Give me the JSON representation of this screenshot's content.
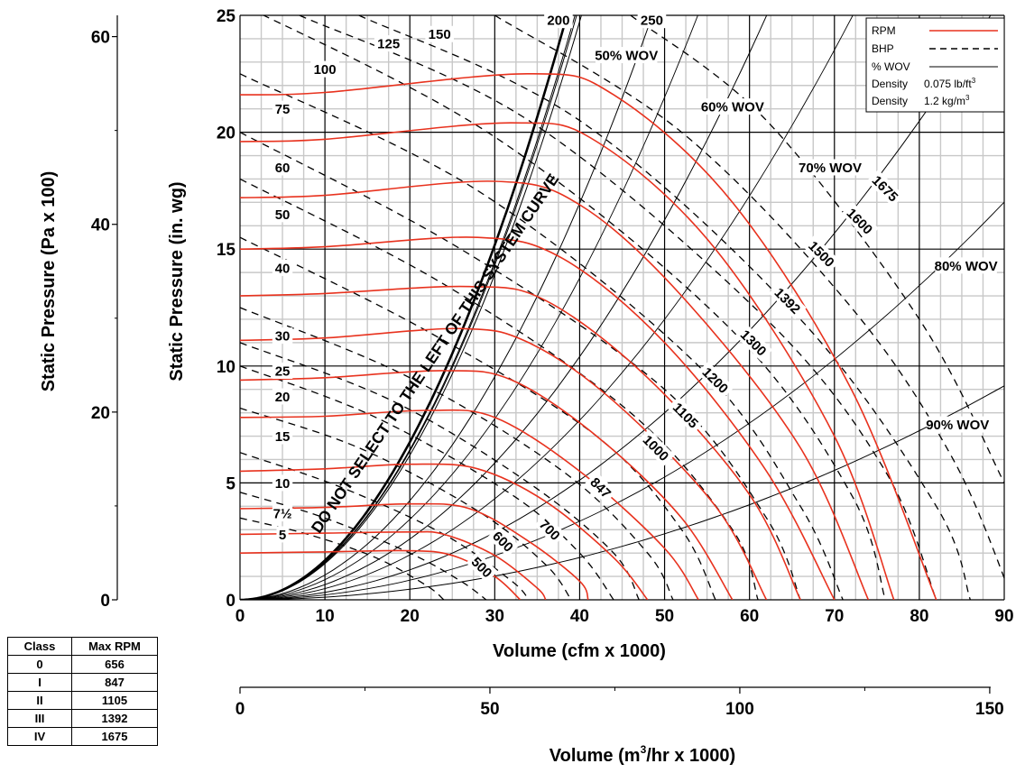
{
  "chart_data": {
    "type": "line",
    "xlabel": "Volume (cfm x 1000)",
    "ylabel": "Static Pressure (in. wg)",
    "ylabel_secondary": "Static Pressure (Pa x 100)",
    "xlabel_secondary_prefix": "Volume (m",
    "xlabel_secondary_sup": "3",
    "xlabel_secondary_suffix": "/hr x 1000)",
    "xlim": [
      0,
      90
    ],
    "ylim": [
      0,
      25
    ],
    "x_ticks": [
      "0",
      "10",
      "20",
      "30",
      "40",
      "50",
      "60",
      "70",
      "80",
      "90"
    ],
    "y_ticks": [
      "0",
      "5",
      "10",
      "15",
      "20",
      "25"
    ],
    "y2_ticks": [
      "0",
      "20",
      "40",
      "60"
    ],
    "y2_tick_values_inwg": [
      0,
      8.03,
      16.06,
      24.09
    ],
    "x2_ticks": [
      "0",
      "50",
      "100",
      "150"
    ],
    "x2_tick_values_cfm": [
      0,
      29.43,
      58.86,
      88.29
    ],
    "grid": true,
    "legend_position": "top-right",
    "legend": {
      "rpm": "RPM",
      "bhp": "BHP",
      "wov": "% WOV",
      "density1_label": "Density",
      "density1_value": "0.075 lb/ft",
      "density1_sup": "3",
      "density2_label": "Density",
      "density2_value": "1.2 kg/m",
      "density2_sup": "3"
    },
    "colors": {
      "rpm": "#e8321e",
      "bhp": "#000000",
      "wov": "#000000",
      "grid": "#c8c8c8"
    },
    "system_curve_label": "DO NOT SELECT TO THE LEFT OF THIS SYSTEM CURVE",
    "rpm_series": [
      {
        "name": "500",
        "points": [
          [
            0,
            2.0
          ],
          [
            10,
            2.05
          ],
          [
            20,
            2.1
          ],
          [
            25,
            1.9
          ],
          [
            30,
            1.0
          ],
          [
            33,
            0
          ]
        ],
        "label_at": [
          28.5,
          1.4
        ]
      },
      {
        "name": "600",
        "points": [
          [
            0,
            2.8
          ],
          [
            10,
            2.85
          ],
          [
            20,
            2.9
          ],
          [
            24,
            2.8
          ],
          [
            30,
            1.9
          ],
          [
            35,
            0.5
          ],
          [
            36,
            0
          ]
        ],
        "label_at": [
          31,
          2.5
        ]
      },
      {
        "name": "700",
        "points": [
          [
            0,
            3.9
          ],
          [
            10,
            3.95
          ],
          [
            20,
            4.1
          ],
          [
            27,
            3.9
          ],
          [
            34,
            2.5
          ],
          [
            40,
            0.8
          ],
          [
            41,
            0
          ]
        ],
        "label_at": [
          36.5,
          3.0
        ]
      },
      {
        "name": "847",
        "points": [
          [
            0,
            5.5
          ],
          [
            10,
            5.6
          ],
          [
            20,
            5.8
          ],
          [
            28,
            5.6
          ],
          [
            36,
            4.2
          ],
          [
            44,
            1.8
          ],
          [
            48,
            0
          ]
        ],
        "label_at": [
          42.5,
          4.8
        ]
      },
      {
        "name": "1000",
        "points": [
          [
            0,
            7.8
          ],
          [
            10,
            7.85
          ],
          [
            22,
            8.1
          ],
          [
            30,
            7.8
          ],
          [
            40,
            5.5
          ],
          [
            50,
            2.2
          ],
          [
            54,
            0
          ]
        ],
        "label_at": [
          49,
          6.5
        ]
      },
      {
        "name": "1105",
        "points": [
          [
            0,
            9.4
          ],
          [
            10,
            9.5
          ],
          [
            24,
            9.8
          ],
          [
            32,
            9.4
          ],
          [
            42,
            7.0
          ],
          [
            52,
            3.5
          ],
          [
            58,
            0
          ]
        ],
        "label_at": [
          52.5,
          7.9
        ]
      },
      {
        "name": "1200",
        "points": [
          [
            0,
            11.1
          ],
          [
            10,
            11.2
          ],
          [
            26,
            11.6
          ],
          [
            34,
            11.0
          ],
          [
            44,
            8.5
          ],
          [
            56,
            4.0
          ],
          [
            62,
            0
          ]
        ],
        "label_at": [
          56,
          9.4
        ]
      },
      {
        "name": "1300",
        "points": [
          [
            0,
            13.0
          ],
          [
            10,
            13.1
          ],
          [
            27,
            13.4
          ],
          [
            36,
            12.8
          ],
          [
            48,
            9.5
          ],
          [
            60,
            4.5
          ],
          [
            66,
            0
          ]
        ],
        "label_at": [
          60.5,
          11.0
        ]
      },
      {
        "name": "1392",
        "points": [
          [
            0,
            15.0
          ],
          [
            10,
            15.1
          ],
          [
            28,
            15.5
          ],
          [
            38,
            14.6
          ],
          [
            50,
            11.0
          ],
          [
            62,
            5.5
          ],
          [
            70,
            0
          ]
        ],
        "label_at": [
          64.5,
          12.8
        ]
      },
      {
        "name": "1500",
        "points": [
          [
            0,
            17.2
          ],
          [
            10,
            17.3
          ],
          [
            30,
            17.9
          ],
          [
            40,
            16.9
          ],
          [
            52,
            13.0
          ],
          [
            66,
            6.5
          ],
          [
            74,
            0
          ]
        ],
        "label_at": [
          68.5,
          14.8
        ]
      },
      {
        "name": "1600",
        "points": [
          [
            0,
            19.6
          ],
          [
            10,
            19.7
          ],
          [
            32,
            20.4
          ],
          [
            42,
            19.6
          ],
          [
            56,
            15.0
          ],
          [
            70,
            7.0
          ],
          [
            77,
            0
          ]
        ],
        "label_at": [
          73,
          16.2
        ]
      },
      {
        "name": "1675",
        "points": [
          [
            0,
            21.6
          ],
          [
            10,
            21.7
          ],
          [
            34,
            22.5
          ],
          [
            44,
            21.6
          ],
          [
            58,
            17.0
          ],
          [
            72,
            9.0
          ],
          [
            82,
            0
          ]
        ],
        "label_at": [
          76,
          17.6
        ]
      }
    ],
    "bhp_series": [
      {
        "name": "5",
        "label_at": [
          5.0,
          2.8
        ],
        "points": [
          [
            0,
            3.5
          ],
          [
            8,
            2.8
          ],
          [
            16,
            1.8
          ],
          [
            22,
            0.6
          ],
          [
            24,
            0
          ]
        ]
      },
      {
        "name": "7½",
        "label_at": [
          5.0,
          3.7
        ],
        "points": [
          [
            0,
            4.6
          ],
          [
            10,
            3.5
          ],
          [
            20,
            2.0
          ],
          [
            26,
            0.8
          ],
          [
            29,
            0
          ]
        ]
      },
      {
        "name": "10",
        "label_at": [
          5.0,
          5.0
        ],
        "points": [
          [
            0,
            6.3
          ],
          [
            12,
            4.8
          ],
          [
            24,
            2.8
          ],
          [
            32,
            0.8
          ],
          [
            34,
            0
          ]
        ]
      },
      {
        "name": "15",
        "label_at": [
          5.0,
          7.0
        ],
        "points": [
          [
            0,
            8.2
          ],
          [
            14,
            6.5
          ],
          [
            28,
            3.8
          ],
          [
            36,
            1.5
          ],
          [
            39,
            0
          ]
        ]
      },
      {
        "name": "20",
        "label_at": [
          5.0,
          8.7
        ],
        "points": [
          [
            0,
            10.0
          ],
          [
            16,
            7.8
          ],
          [
            32,
            4.5
          ],
          [
            40,
            2.0
          ],
          [
            44,
            0
          ]
        ]
      },
      {
        "name": "25",
        "label_at": [
          5.0,
          9.8
        ],
        "points": [
          [
            0,
            11.0
          ],
          [
            18,
            8.5
          ],
          [
            34,
            5.0
          ],
          [
            44,
            2.0
          ],
          [
            47,
            0
          ]
        ]
      },
      {
        "name": "30",
        "label_at": [
          5.0,
          11.3
        ],
        "points": [
          [
            0,
            12.5
          ],
          [
            20,
            9.5
          ],
          [
            38,
            5.5
          ],
          [
            48,
            2.0
          ],
          [
            51,
            0
          ]
        ]
      },
      {
        "name": "40",
        "label_at": [
          5.0,
          14.2
        ],
        "points": [
          [
            0,
            15.5
          ],
          [
            22,
            11.5
          ],
          [
            42,
            7.0
          ],
          [
            52,
            3.0
          ],
          [
            56,
            0
          ]
        ]
      },
      {
        "name": "50",
        "label_at": [
          5.0,
          16.5
        ],
        "points": [
          [
            0,
            18.0
          ],
          [
            24,
            13.5
          ],
          [
            46,
            8.0
          ],
          [
            58,
            3.0
          ],
          [
            61,
            0
          ]
        ]
      },
      {
        "name": "60",
        "label_at": [
          5.0,
          18.5
        ],
        "points": [
          [
            0,
            20.0
          ],
          [
            26,
            15.0
          ],
          [
            50,
            9.0
          ],
          [
            62,
            3.5
          ],
          [
            66,
            0
          ]
        ]
      },
      {
        "name": "75",
        "label_at": [
          5.0,
          21.0
        ],
        "points": [
          [
            0,
            22.5
          ],
          [
            28,
            17.5
          ],
          [
            54,
            10.0
          ],
          [
            66,
            4.0
          ],
          [
            71,
            0
          ]
        ]
      },
      {
        "name": "100",
        "label_at": [
          10.0,
          22.7
        ],
        "points": [
          [
            0,
            25.5
          ],
          [
            30,
            19.8
          ],
          [
            58,
            11.5
          ],
          [
            72,
            4.5
          ],
          [
            76,
            0
          ]
        ]
      },
      {
        "name": "125",
        "label_at": [
          17.5,
          23.8
        ],
        "points": [
          [
            7,
            25
          ],
          [
            34,
            20.5
          ],
          [
            62,
            12.0
          ],
          [
            76,
            5.5
          ],
          [
            82,
            0
          ]
        ]
      },
      {
        "name": "150",
        "label_at": [
          23.5,
          24.2
        ],
        "points": [
          [
            14,
            25
          ],
          [
            40,
            20.5
          ],
          [
            66,
            12.0
          ],
          [
            82,
            4.0
          ],
          [
            86,
            0
          ]
        ]
      },
      {
        "name": "200",
        "label_at": [
          37.5,
          24.8
        ],
        "points": [
          [
            30,
            25
          ],
          [
            52,
            20.0
          ],
          [
            72,
            12.5
          ],
          [
            84,
            6.0
          ],
          [
            91,
            0
          ]
        ]
      },
      {
        "name": "250",
        "label_at": [
          48.5,
          24.8
        ],
        "points": [
          [
            46,
            25
          ],
          [
            62,
            20.5
          ],
          [
            80,
            12.0
          ],
          [
            90,
            5.0
          ]
        ]
      }
    ],
    "wov_series": [
      {
        "name": "50% WOV",
        "label_at": [
          45.5,
          23.3
        ],
        "k": 0.0159
      },
      {
        "name": "60% WOV",
        "label_at": [
          58,
          21.1
        ],
        "k": 0.0106
      },
      {
        "name": "70% WOV",
        "label_at": [
          69.5,
          18.5
        ],
        "k": 0.0065
      },
      {
        "name": "80% WOV",
        "label_at": [
          85.5,
          14.3
        ],
        "k": 0.0032
      },
      {
        "name": "90% WOV",
        "label_at": [
          84.5,
          7.5
        ],
        "k": 0.00113
      }
    ],
    "system_curve_k": [
      0.01686,
      0.01606,
      0.01546
    ]
  },
  "class_table": {
    "headers": [
      "Class",
      "Max RPM"
    ],
    "rows": [
      [
        "0",
        "656"
      ],
      [
        "I",
        "847"
      ],
      [
        "II",
        "1105"
      ],
      [
        "III",
        "1392"
      ],
      [
        "IV",
        "1675"
      ]
    ]
  }
}
